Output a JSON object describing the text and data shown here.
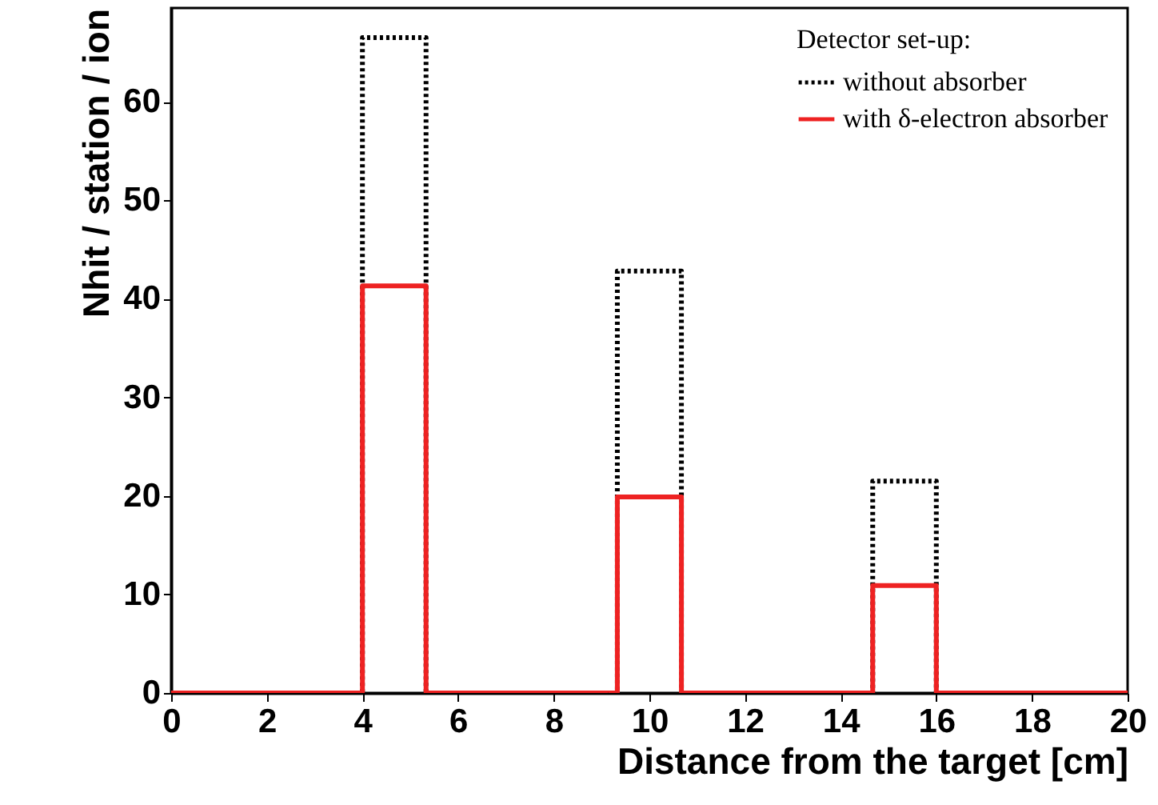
{
  "chart_data": {
    "type": "histogram",
    "xlabel": "Distance from the target [cm]",
    "ylabel": "Nhit / station / ion",
    "legend_title": "Detector set-up:",
    "bins": [
      0,
      1.33,
      2.67,
      4,
      5.33,
      6.67,
      8,
      9.33,
      10.67,
      12,
      13.33,
      14.67,
      16,
      17.33,
      18.67,
      20
    ],
    "series": [
      {
        "name": "without absorber",
        "color": "#000000",
        "line_style": "dotted",
        "values": [
          0,
          0,
          0,
          66.5,
          0,
          0,
          0,
          42.8,
          0,
          0,
          0,
          21.5,
          0,
          0,
          0
        ]
      },
      {
        "name": "with δ-electron absorber",
        "color": "#ee2222",
        "line_style": "solid",
        "values": [
          0,
          0,
          0,
          41.3,
          0,
          0,
          0,
          19.9,
          0,
          0,
          0,
          10.9,
          0,
          0,
          0
        ]
      }
    ],
    "xlim": [
      0,
      20
    ],
    "xticks": [
      0,
      2,
      4,
      6,
      8,
      10,
      12,
      14,
      16,
      18,
      20
    ],
    "ylim": [
      0,
      69.5
    ],
    "yticks": [
      0,
      10,
      20,
      30,
      40,
      50,
      60
    ],
    "grid": false,
    "legend": "top right"
  }
}
